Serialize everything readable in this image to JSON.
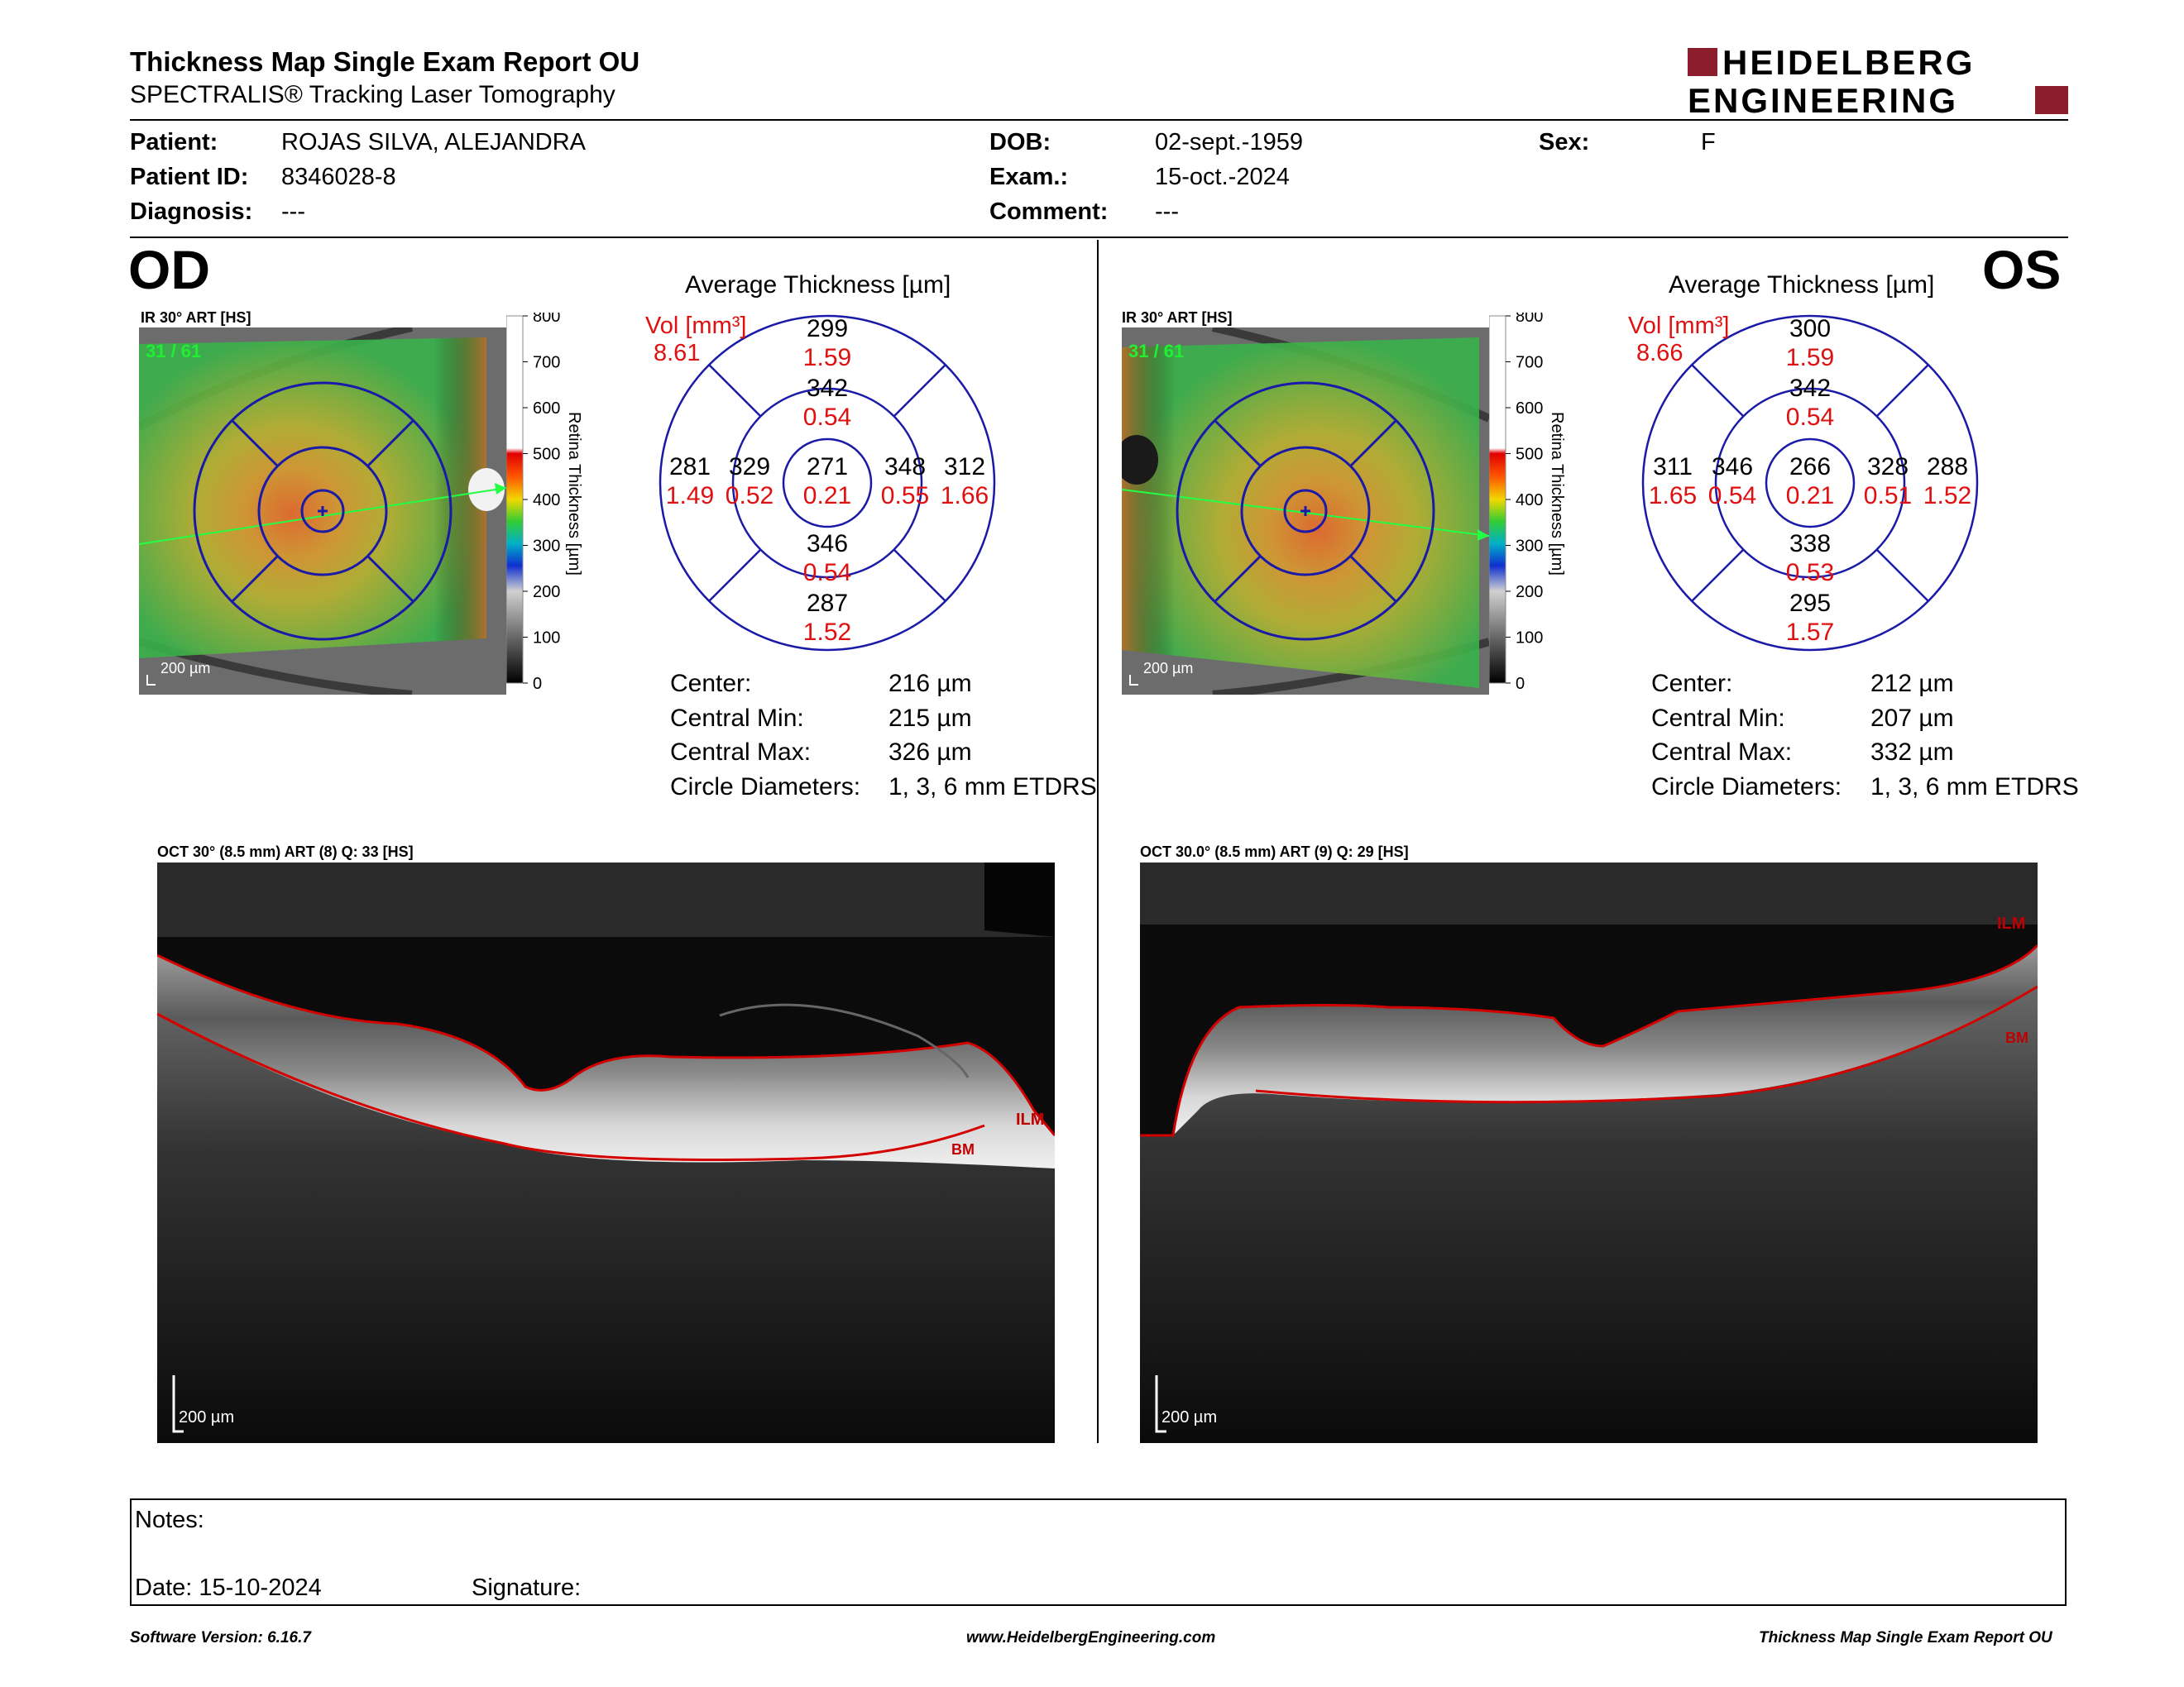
{
  "header": {
    "title": "Thickness Map Single Exam Report OU",
    "subtitle": "SPECTRALIS® Tracking Laser Tomography",
    "brand_line1": "HEIDELBERG",
    "brand_line2": "ENGINEERING",
    "brand_color": "#8c1d2c"
  },
  "patient": {
    "patient_label": "Patient:",
    "patient_value": "ROJAS SILVA, ALEJANDRA",
    "id_label": "Patient ID:",
    "id_value": "8346028-8",
    "diag_label": "Diagnosis:",
    "diag_value": "---",
    "dob_label": "DOB:",
    "dob_value": "02-sept.-1959",
    "exam_label": "Exam.:",
    "exam_value": "15-oct.-2024",
    "comment_label": "Comment:",
    "comment_value": "---",
    "sex_label": "Sex:",
    "sex_value": "F"
  },
  "od": {
    "eye": "OD",
    "fundus_caption": "IR 30° ART [HS]",
    "frame": "31 / 61",
    "scalebar": "200 µm",
    "colorbar_label": "Retina Thickness [µm]",
    "colorbar_ticks": [
      "800",
      "700",
      "600",
      "500",
      "400",
      "300",
      "200",
      "100",
      "0"
    ],
    "avg_title": "Average Thickness [µm]",
    "vol_label": "Vol [mm³]",
    "vol_total": "8.61",
    "center_t": "271",
    "center_v": "0.21",
    "inner_sup_t": "342",
    "inner_sup_v": "0.54",
    "inner_inf_t": "346",
    "inner_inf_v": "0.54",
    "inner_left_t": "329",
    "inner_left_v": "0.52",
    "inner_right_t": "348",
    "inner_right_v": "0.55",
    "outer_sup_t": "299",
    "outer_sup_v": "1.59",
    "outer_inf_t": "287",
    "outer_inf_v": "1.52",
    "outer_left_t": "281",
    "outer_left_v": "1.49",
    "outer_right_t": "312",
    "outer_right_v": "1.66",
    "center_label": "Center:",
    "center_value": "216 µm",
    "cmin_label": "Central Min:",
    "cmin_value": "215 µm",
    "cmax_label": "Central Max:",
    "cmax_value": "326 µm",
    "circ_label": "Circle Diameters:",
    "circ_value": "1, 3, 6 mm ETDRS",
    "oct_caption": "OCT 30° (8.5 mm) ART (8) Q: 33 [HS]",
    "oct_scale": "200 µm",
    "ilm": "ILM",
    "bm": "BM"
  },
  "os": {
    "eye": "OS",
    "fundus_caption": "IR 30° ART [HS]",
    "frame": "31 / 61",
    "scalebar": "200 µm",
    "colorbar_label": "Retina Thickness [µm]",
    "colorbar_ticks": [
      "800",
      "700",
      "600",
      "500",
      "400",
      "300",
      "200",
      "100",
      "0"
    ],
    "avg_title": "Average Thickness [µm]",
    "vol_label": "Vol [mm³]",
    "vol_total": "8.66",
    "center_t": "266",
    "center_v": "0.21",
    "inner_sup_t": "342",
    "inner_sup_v": "0.54",
    "inner_inf_t": "338",
    "inner_inf_v": "0.53",
    "inner_left_t": "346",
    "inner_left_v": "0.54",
    "inner_right_t": "328",
    "inner_right_v": "0.51",
    "outer_sup_t": "300",
    "outer_sup_v": "1.59",
    "outer_inf_t": "295",
    "outer_inf_v": "1.57",
    "outer_left_t": "311",
    "outer_left_v": "1.65",
    "outer_right_t": "288",
    "outer_right_v": "1.52",
    "center_label": "Center:",
    "center_value": "212 µm",
    "cmin_label": "Central Min:",
    "cmin_value": "207 µm",
    "cmax_label": "Central Max:",
    "cmax_value": "332 µm",
    "circ_label": "Circle Diameters:",
    "circ_value": "1, 3, 6 mm ETDRS",
    "oct_caption": "OCT 30.0° (8.5 mm) ART (9) Q: 29 [HS]",
    "oct_scale": "200 µm",
    "ilm": "ILM",
    "bm": "BM"
  },
  "notes": {
    "notes_label": "Notes:",
    "date_label": "Date: 15-10-2024",
    "signature_label": "Signature:"
  },
  "footer": {
    "left": "Software Version: 6.16.7",
    "center": "www.HeidelbergEngineering.com",
    "right": "Thickness Map Single Exam Report OU"
  },
  "colors": {
    "ring_blue": "#1a1aa8",
    "volume_red": "#e01010",
    "layer_red": "#d40000"
  }
}
